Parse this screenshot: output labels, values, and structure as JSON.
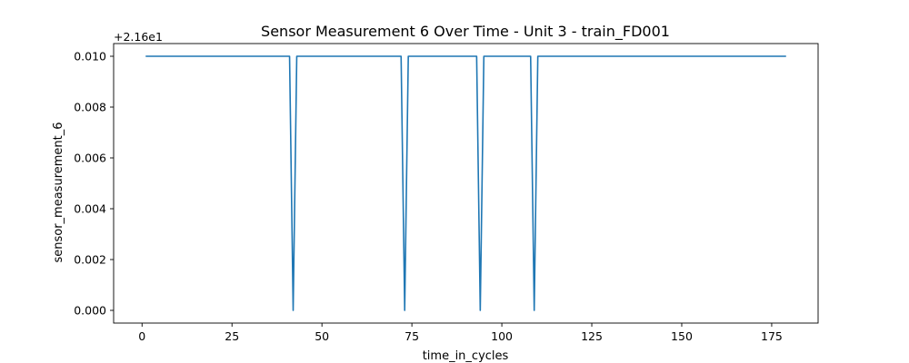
{
  "chart_data": {
    "type": "line",
    "title": "Sensor Measurement 6 Over Time - Unit 3 - train_FD001",
    "xlabel": "time_in_cycles",
    "ylabel": "sensor_measurement_6",
    "y_offset_label": "+2.16e1",
    "xlim": [
      -7.9,
      187.9
    ],
    "ylim": [
      -0.0005,
      0.0105
    ],
    "x_ticks": [
      0,
      25,
      50,
      75,
      100,
      125,
      150,
      175
    ],
    "y_ticks": [
      0.0,
      0.002,
      0.004,
      0.006,
      0.008,
      0.01
    ],
    "y_tick_labels": [
      "0.000",
      "0.002",
      "0.004",
      "0.006",
      "0.008",
      "0.010"
    ],
    "grid": false,
    "series": [
      {
        "color": "#1f77b4",
        "points": [
          [
            1,
            0.01
          ],
          [
            41,
            0.01
          ],
          [
            42,
            0.0
          ],
          [
            43,
            0.01
          ],
          [
            72,
            0.01
          ],
          [
            73,
            0.0
          ],
          [
            74,
            0.01
          ],
          [
            93,
            0.01
          ],
          [
            94,
            0.0
          ],
          [
            95,
            0.01
          ],
          [
            108,
            0.01
          ],
          [
            109,
            0.0
          ],
          [
            110,
            0.01
          ],
          [
            179,
            0.01
          ]
        ]
      }
    ]
  }
}
